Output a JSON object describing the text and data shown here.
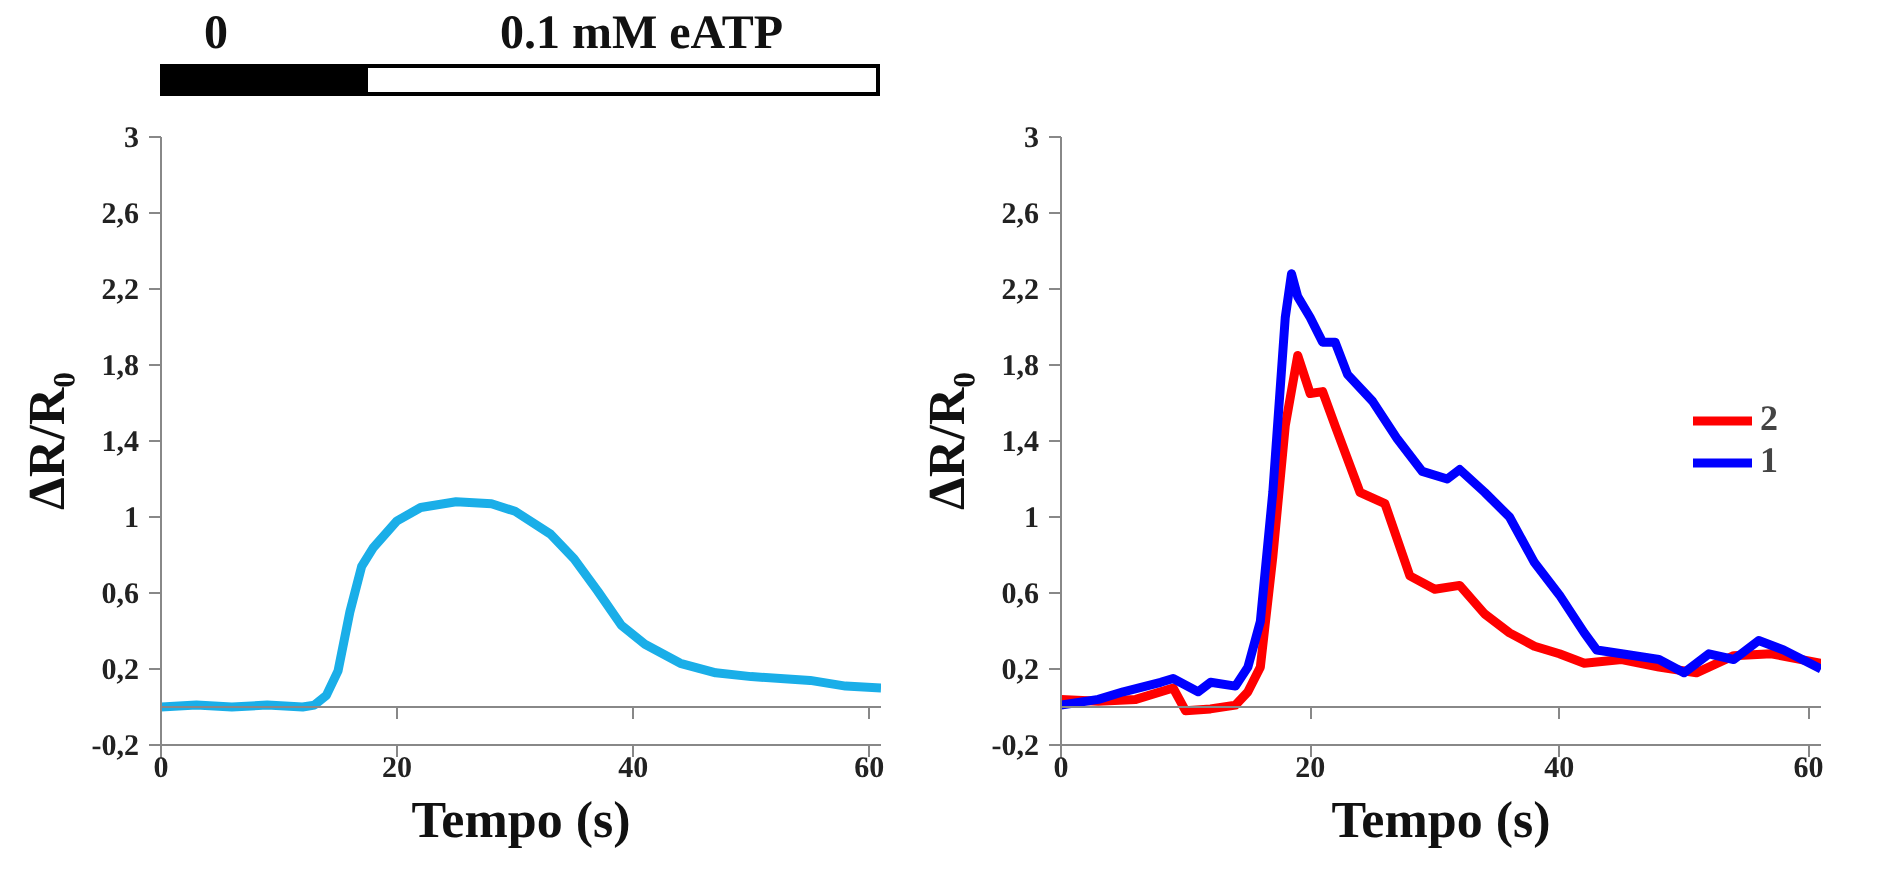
{
  "chart_data": [
    {
      "type": "line",
      "xlabel": "Tempo (s)",
      "ylabel": "ΔR/R₀",
      "xlim": [
        0,
        61
      ],
      "ylim": [
        -0.2,
        3
      ],
      "xticks": [
        0,
        20,
        40,
        60
      ],
      "yticks": [
        {
          "value": -0.2,
          "label": "-0,2"
        },
        {
          "value": 0.2,
          "label": "0,2"
        },
        {
          "value": 0.6,
          "label": "0,6"
        },
        1,
        {
          "value": 1.4,
          "label": "1,4"
        },
        {
          "value": 1.8,
          "label": "1,8"
        },
        {
          "value": 2.2,
          "label": "2,2"
        },
        {
          "value": 2.6,
          "label": "2,6"
        },
        3
      ],
      "grid": false,
      "annotations": [
        "0",
        "0.1 mM eATP"
      ],
      "series": [
        {
          "color": "#1aaee8",
          "x": [
            0,
            3,
            6,
            9,
            12,
            13,
            14,
            15,
            16,
            17,
            18,
            20,
            22,
            25,
            28,
            30,
            33,
            35,
            37,
            39,
            41,
            44,
            47,
            50,
            55,
            58,
            61
          ],
          "values": [
            0.0,
            0.01,
            0.0,
            0.01,
            0.0,
            0.01,
            0.06,
            0.19,
            0.5,
            0.74,
            0.84,
            0.98,
            1.05,
            1.08,
            1.07,
            1.03,
            0.91,
            0.78,
            0.61,
            0.43,
            0.33,
            0.23,
            0.18,
            0.16,
            0.14,
            0.11,
            0.1
          ]
        }
      ]
    },
    {
      "type": "line",
      "xlabel": "Tempo (s)",
      "ylabel": "ΔR/R₀",
      "xlim": [
        0,
        61
      ],
      "ylim": [
        -0.2,
        3
      ],
      "xticks": [
        0,
        20,
        40,
        60
      ],
      "yticks": [
        {
          "value": -0.2,
          "label": "-0,2"
        },
        {
          "value": 0.2,
          "label": "0,2"
        },
        {
          "value": 0.6,
          "label": "0,6"
        },
        1,
        {
          "value": 1.4,
          "label": "1,4"
        },
        {
          "value": 1.8,
          "label": "1,8"
        },
        {
          "value": 2.2,
          "label": "2,2"
        },
        {
          "value": 2.6,
          "label": "2,6"
        },
        3
      ],
      "grid": false,
      "legend": "right",
      "series": [
        {
          "name": "2",
          "color": "#ff0000",
          "x": [
            0,
            3,
            6,
            9,
            10,
            12,
            14,
            15,
            16,
            17,
            18,
            19,
            20,
            21,
            22,
            24,
            26,
            28,
            30,
            32,
            34,
            36,
            38,
            40,
            42,
            45,
            48,
            51,
            54,
            57,
            61
          ],
          "values": [
            0.04,
            0.03,
            0.04,
            0.1,
            -0.02,
            -0.01,
            0.01,
            0.08,
            0.21,
            0.79,
            1.48,
            1.85,
            1.65,
            1.66,
            1.48,
            1.13,
            1.07,
            0.69,
            0.62,
            0.64,
            0.49,
            0.39,
            0.32,
            0.28,
            0.23,
            0.25,
            0.21,
            0.18,
            0.27,
            0.28,
            0.23
          ]
        },
        {
          "name": "1",
          "color": "#0000ff",
          "x": [
            0,
            3,
            5,
            8,
            9,
            11,
            12,
            14,
            15,
            16,
            17,
            18,
            18.5,
            19,
            20,
            21,
            22,
            23,
            25,
            27,
            29,
            31,
            32,
            34,
            36,
            38,
            40,
            42,
            43,
            45,
            48,
            50,
            52,
            54,
            56,
            58,
            61
          ],
          "values": [
            0.01,
            0.04,
            0.08,
            0.13,
            0.15,
            0.08,
            0.13,
            0.11,
            0.21,
            0.45,
            1.13,
            2.05,
            2.28,
            2.16,
            2.05,
            1.92,
            1.92,
            1.75,
            1.61,
            1.41,
            1.24,
            1.2,
            1.25,
            1.13,
            1.0,
            0.76,
            0.59,
            0.39,
            0.3,
            0.28,
            0.25,
            0.18,
            0.28,
            0.25,
            0.35,
            0.3,
            0.2
          ]
        }
      ]
    }
  ]
}
